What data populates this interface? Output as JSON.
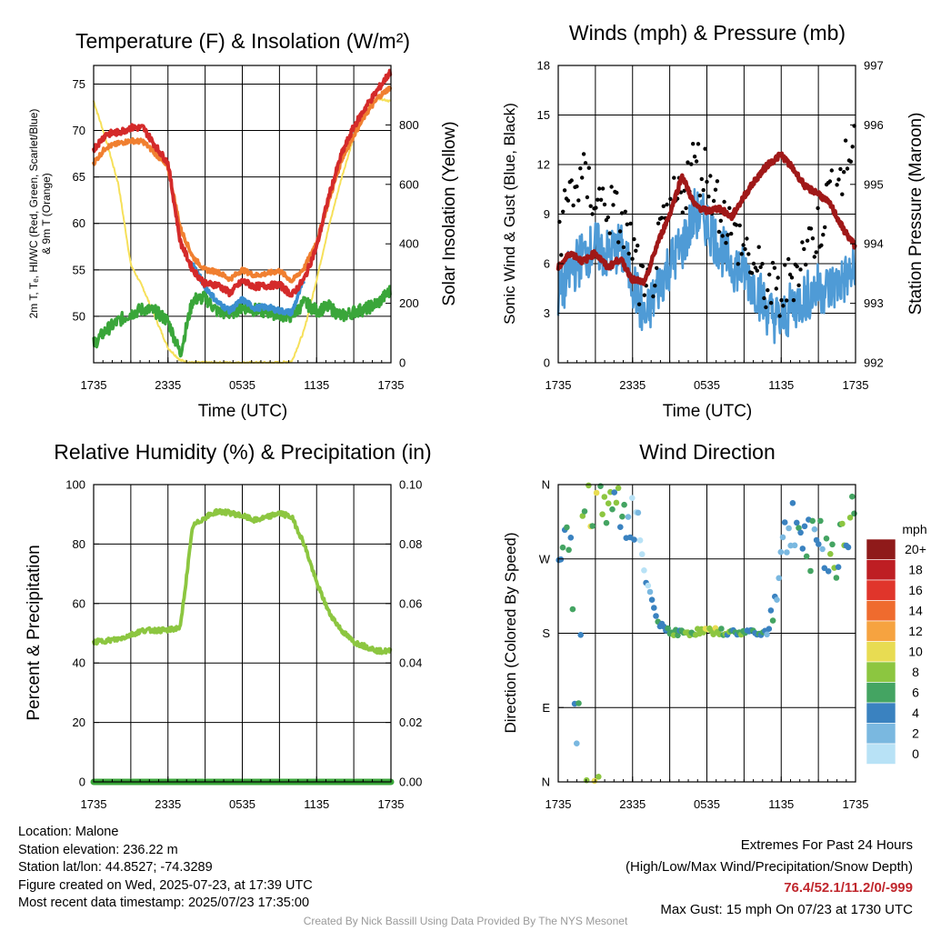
{
  "colors": {
    "temp": "#d42a2a",
    "dew": "#3a8ed0",
    "hi": "#3aa63a",
    "t9": "#f07f30",
    "solar": "#f6e05a",
    "wind": "#4f9bd6",
    "gust": "#000000",
    "pressure": "#a01818",
    "rh": "#8cc640",
    "precip": "#3aa63a",
    "extremes": "#c0272d",
    "credit": "#9a9a9a"
  },
  "charts": {
    "temp": {
      "title": "Temperature (F) & Insolation (W/m²)",
      "ylabel_line1": "2m T, Tₑ, HI/WC (Red, Green, Scarlet/Blue)",
      "ylabel_line2": "& 9m T (Orange)",
      "y2label": "Solar Insolation (Yellow)",
      "xlabel": "Time (UTC)"
    },
    "wind": {
      "title": "Winds (mph) & Pressure (mb)",
      "ylabel": "Sonic Wind & Gust (Blue, Black)",
      "y2label": "Station Pressure (Maroon)",
      "xlabel": "Time (UTC)"
    },
    "rh": {
      "title": "Relative Humidity (%) & Precipitation (in)",
      "ylabel": "Percent & Precipitation"
    },
    "dir": {
      "title": "Wind Direction",
      "ylabel": "Direction (Colored By Speed)",
      "colorbar_title": "mph",
      "colorbar_labels": [
        "20+",
        "18",
        "16",
        "14",
        "12",
        "10",
        "8",
        "6",
        "4",
        "2",
        "0"
      ],
      "colorbar_colors": [
        "#8f1a1a",
        "#be1e23",
        "#e0352b",
        "#ef6b2e",
        "#f6a340",
        "#e8dc52",
        "#8cc640",
        "#44a462",
        "#3a82c0",
        "#7ab8e0",
        "#b8e2f6"
      ]
    }
  },
  "chart_data": [
    {
      "type": "line",
      "title": "Temperature (F) & Insolation (W/m²)",
      "xlabel": "Time (UTC)",
      "ylabel": "2m T, Tₑ, HI/WC (Red, Green, Scarlet/Blue) & 9m T (Orange)",
      "y2label": "Solar Insolation (Yellow)",
      "x_ticks": [
        "1735",
        "2335",
        "0535",
        "1135",
        "1735"
      ],
      "ylim": [
        45,
        77
      ],
      "y_ticks": [
        50,
        55,
        60,
        65,
        70,
        75
      ],
      "y2lim": [
        0,
        1000
      ],
      "y2_ticks": [
        0,
        200,
        400,
        600,
        800
      ],
      "x_hours": [
        0,
        1,
        2,
        3,
        4,
        5,
        6,
        7,
        8,
        9,
        10,
        11,
        12,
        13,
        14,
        15,
        16,
        17,
        18,
        19,
        20,
        21,
        22,
        23,
        24
      ],
      "series": [
        {
          "name": "2m T (Red)",
          "values": [
            68,
            69.6,
            69.8,
            70.3,
            70.3,
            68.3,
            66.5,
            58,
            55,
            53.5,
            53.4,
            52.5,
            53.8,
            53.2,
            53.3,
            53.4,
            52.3,
            54,
            57.5,
            63,
            67.4,
            70.4,
            72.6,
            74.5,
            76.4
          ]
        },
        {
          "name": "9m T (Orange)",
          "values": [
            66.5,
            68.2,
            68.6,
            68.9,
            68.8,
            67.5,
            66,
            59.5,
            56.4,
            55,
            54.8,
            54,
            55,
            54.4,
            54.6,
            54.9,
            53.8,
            55.2,
            58,
            62.5,
            66.8,
            69.5,
            71.8,
            73.6,
            74.7
          ]
        },
        {
          "name": "Td (Green)",
          "values": [
            47,
            48.5,
            49.5,
            50.3,
            50.8,
            50.5,
            49.5,
            46,
            51.8,
            52,
            50.5,
            50.3,
            51,
            50.7,
            50.5,
            50.2,
            50,
            51.5,
            50.6,
            51,
            50,
            50.5,
            50.8,
            51.5,
            52.8
          ]
        },
        {
          "name": "HI/WC (Blue)",
          "values": [
            null,
            null,
            null,
            null,
            null,
            null,
            null,
            null,
            55.6,
            53.2,
            51.5,
            50.6,
            51.8,
            50.9,
            51,
            50.6,
            50.4,
            54
          ]
        },
        {
          "name": "Solar Insolation (Yellow)",
          "axis": "y2",
          "values": [
            880,
            750,
            600,
            330,
            250,
            150,
            50,
            8,
            0,
            0,
            0,
            0,
            0,
            0,
            0,
            0,
            5,
            110,
            280,
            460,
            620,
            760,
            860,
            890,
            880
          ]
        }
      ]
    },
    {
      "type": "line",
      "title": "Winds (mph) & Pressure (mb)",
      "xlabel": "Time (UTC)",
      "ylabel": "Sonic Wind & Gust (Blue, Black)",
      "y2label": "Station Pressure (Maroon)",
      "x_ticks": [
        "1735",
        "2335",
        "0535",
        "1135",
        "1735"
      ],
      "ylim": [
        0,
        18
      ],
      "y_ticks": [
        0,
        3,
        6,
        9,
        12,
        15,
        18
      ],
      "y2lim": [
        992,
        997
      ],
      "y2_ticks": [
        992,
        993,
        994,
        995,
        996,
        997
      ],
      "x_hours": [
        0,
        1,
        2,
        3,
        4,
        5,
        6,
        7,
        8,
        9,
        10,
        11,
        12,
        13,
        14,
        15,
        16,
        17,
        18,
        19,
        20,
        21,
        22,
        23,
        24
      ],
      "series": [
        {
          "name": "Sonic Wind (Blue)",
          "values": [
            4,
            5.5,
            6.5,
            7,
            6.5,
            7,
            5,
            2.5,
            4.5,
            6,
            7,
            9,
            8.5,
            7,
            6,
            5.5,
            4.5,
            3,
            2.5,
            3.5,
            4,
            4.5,
            4.5,
            5,
            5.5
          ]
        },
        {
          "name": "Gust (Black)",
          "values": [
            7.5,
            10.5,
            11,
            10,
            9.5,
            8.5,
            7,
            3.5,
            6.5,
            9,
            10.5,
            12.2,
            11.5,
            9.5,
            8,
            7,
            5.5,
            4.5,
            4,
            5.5,
            7,
            8,
            10.5,
            11.5,
            13.5
          ]
        },
        {
          "name": "Station Pressure (Maroon)",
          "axis": "y2",
          "values": [
            993.6,
            993.85,
            993.7,
            993.85,
            993.6,
            993.75,
            993.4,
            993.35,
            994,
            994.5,
            995.15,
            994.65,
            994.55,
            994.6,
            994.45,
            994.8,
            995.1,
            995.35,
            995.5,
            995.25,
            994.95,
            994.85,
            994.65,
            994.25,
            993.95
          ]
        }
      ]
    },
    {
      "type": "line",
      "title": "Relative Humidity (%) & Precipitation (in)",
      "ylabel": "Percent & Precipitation",
      "x_ticks": [
        "1735",
        "2335",
        "0535",
        "1135",
        "1735"
      ],
      "ylim": [
        0,
        100
      ],
      "y_ticks": [
        0,
        20,
        40,
        60,
        80,
        100
      ],
      "y2lim": [
        0,
        0.1
      ],
      "y2_ticks": [
        "0.00",
        "0.02",
        "0.04",
        "0.06",
        "0.08",
        "0.10"
      ],
      "x_hours": [
        0,
        1,
        2,
        3,
        4,
        5,
        6,
        7,
        8,
        9,
        10,
        11,
        12,
        13,
        14,
        15,
        16,
        17,
        18,
        19,
        20,
        21,
        22,
        23,
        24
      ],
      "series": [
        {
          "name": "Relative Humidity",
          "values": [
            47,
            47.5,
            48,
            49.5,
            51,
            51,
            51,
            52,
            86,
            89,
            91,
            90.5,
            89.5,
            88,
            89,
            90.5,
            89,
            80,
            67,
            57,
            51,
            47,
            45.5,
            44,
            44
          ]
        },
        {
          "name": "Precipitation",
          "axis": "y2",
          "values": [
            0,
            0,
            0,
            0,
            0,
            0,
            0,
            0,
            0,
            0,
            0,
            0,
            0,
            0,
            0,
            0,
            0,
            0,
            0,
            0,
            0,
            0,
            0,
            0,
            0
          ]
        }
      ]
    },
    {
      "type": "scatter",
      "title": "Wind Direction",
      "ylabel": "Direction (Colored By Speed)",
      "x_ticks": [
        "1735",
        "2335",
        "0535",
        "1135",
        "1735"
      ],
      "y_ticks": [
        "N",
        "E",
        "S",
        "W",
        "N"
      ],
      "ylim": [
        0,
        360
      ],
      "colorbar": {
        "title": "mph",
        "levels": [
          "0",
          "2",
          "4",
          "6",
          "8",
          "10",
          "12",
          "14",
          "16",
          "18",
          "20+"
        ]
      },
      "x_hours": [
        0,
        1,
        1.5,
        2,
        3,
        4,
        5,
        6,
        6.5,
        7,
        8,
        9,
        10,
        11,
        12,
        13,
        14,
        15,
        16,
        17,
        18,
        19,
        20,
        21,
        22,
        23,
        24
      ],
      "series": [
        {
          "name": "Direction (deg)",
          "values": [
            300,
            315,
            10,
            330,
            345,
            330,
            335,
            320,
            300,
            250,
            195,
            182,
            180,
            181,
            183,
            182,
            180,
            181,
            182,
            180,
            275,
            320,
            280,
            300,
            270,
            295,
            320
          ]
        },
        {
          "name": "Speed (mph)",
          "values": [
            4,
            6,
            3,
            7,
            8,
            7,
            6,
            2,
            2,
            2,
            4,
            5,
            6,
            7,
            9,
            8,
            6,
            5,
            6,
            4,
            3,
            2,
            5,
            4,
            6,
            5,
            8
          ]
        }
      ]
    }
  ],
  "info": {
    "location": "Location: Malone",
    "elevation": "Station elevation: 236.22 m",
    "latlon": "Station lat/lon: 44.8527; -74.3289",
    "created": "Figure created on Wed, 2025-07-23, at 17:39 UTC",
    "recent": "Most recent data timestamp: 2025/07/23 17:35:00",
    "extremes_title": "Extremes For Past 24 Hours",
    "extremes_sub": "(High/Low/Max Wind/Precipitation/Snow Depth)",
    "extremes_values": "76.4/52.1/11.2/0/-999",
    "max_gust": "Max Gust: 15 mph On 07/23 at 1730 UTC",
    "credit": "Created By Nick Bassill Using Data Provided By The NYS Mesonet"
  }
}
